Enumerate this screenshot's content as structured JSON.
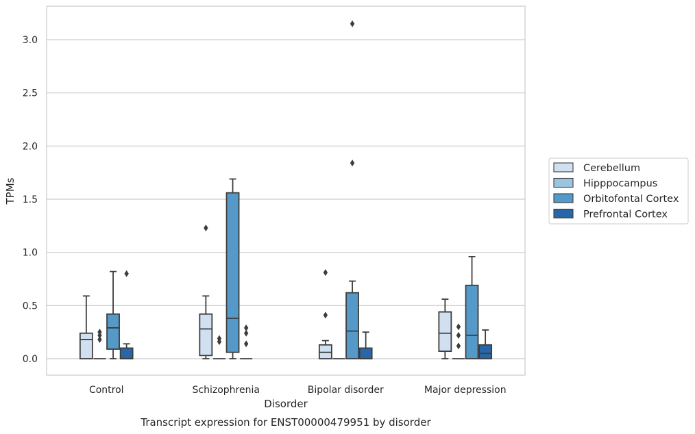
{
  "chart_data": {
    "type": "box",
    "title": "Transcript expression for ENST00000479951 by disorder",
    "xlabel": "Disorder",
    "ylabel": "TPMs",
    "categories": [
      "Control",
      "Schizophrenia",
      "Bipolar disorder",
      "Major depression"
    ],
    "ylim": [
      -0.15,
      3.3
    ],
    "yticks": [
      "0.0",
      "0.5",
      "1.0",
      "1.5",
      "2.0",
      "2.5",
      "3.0"
    ],
    "grid": true,
    "legend_position": "right",
    "series": [
      {
        "name": "Cerebellum",
        "color": "#d0e0f0",
        "boxes": [
          {
            "q1": 0.0,
            "median": 0.18,
            "q3": 0.24,
            "whisker_low": 0.0,
            "whisker_high": 0.59,
            "outliers": []
          },
          {
            "q1": 0.03,
            "median": 0.28,
            "q3": 0.42,
            "whisker_low": 0.0,
            "whisker_high": 0.59,
            "outliers": [
              1.23
            ]
          },
          {
            "q1": 0.0,
            "median": 0.06,
            "q3": 0.13,
            "whisker_low": 0.0,
            "whisker_high": 0.17,
            "outliers": [
              0.41,
              0.81
            ]
          },
          {
            "q1": 0.07,
            "median": 0.24,
            "q3": 0.44,
            "whisker_low": 0.0,
            "whisker_high": 0.56,
            "outliers": []
          }
        ]
      },
      {
        "name": "Hipppocampus",
        "color": "#9dc4de",
        "boxes": [
          {
            "q1": 0.0,
            "median": 0.0,
            "q3": 0.0,
            "whisker_low": 0.0,
            "whisker_high": 0.0,
            "outliers": [
              0.18,
              0.22,
              0.25
            ]
          },
          {
            "q1": 0.0,
            "median": 0.0,
            "q3": 0.0,
            "whisker_low": 0.0,
            "whisker_high": 0.0,
            "outliers": [
              0.16,
              0.19
            ]
          },
          {
            "q1": 0.0,
            "median": 0.0,
            "q3": 0.0,
            "whisker_low": 0.0,
            "whisker_high": 0.0,
            "outliers": []
          },
          {
            "q1": 0.0,
            "median": 0.0,
            "q3": 0.0,
            "whisker_low": 0.0,
            "whisker_high": 0.0,
            "outliers": [
              0.12,
              0.22,
              0.3
            ]
          }
        ]
      },
      {
        "name": "Orbitofontal Cortex",
        "color": "#5599c8",
        "boxes": [
          {
            "q1": 0.09,
            "median": 0.29,
            "q3": 0.42,
            "whisker_low": 0.0,
            "whisker_high": 0.82,
            "outliers": []
          },
          {
            "q1": 0.06,
            "median": 0.38,
            "q3": 1.56,
            "whisker_low": 0.0,
            "whisker_high": 1.69,
            "outliers": []
          },
          {
            "q1": 0.0,
            "median": 0.26,
            "q3": 0.62,
            "whisker_low": 0.0,
            "whisker_high": 0.73,
            "outliers": [
              1.84,
              3.15
            ]
          },
          {
            "q1": 0.0,
            "median": 0.22,
            "q3": 0.69,
            "whisker_low": 0.0,
            "whisker_high": 0.96,
            "outliers": []
          }
        ]
      },
      {
        "name": "Prefrontal Cortex",
        "color": "#2767a8",
        "boxes": [
          {
            "q1": 0.0,
            "median": 0.0,
            "q3": 0.1,
            "whisker_low": 0.0,
            "whisker_high": 0.14,
            "outliers": [
              0.8
            ]
          },
          {
            "q1": 0.0,
            "median": 0.0,
            "q3": 0.0,
            "whisker_low": 0.0,
            "whisker_high": 0.0,
            "outliers": [
              0.14,
              0.24,
              0.29
            ]
          },
          {
            "q1": 0.0,
            "median": 0.0,
            "q3": 0.1,
            "whisker_low": 0.0,
            "whisker_high": 0.25,
            "outliers": []
          },
          {
            "q1": 0.0,
            "median": 0.05,
            "q3": 0.13,
            "whisker_low": 0.0,
            "whisker_high": 0.27,
            "outliers": []
          }
        ]
      }
    ]
  }
}
